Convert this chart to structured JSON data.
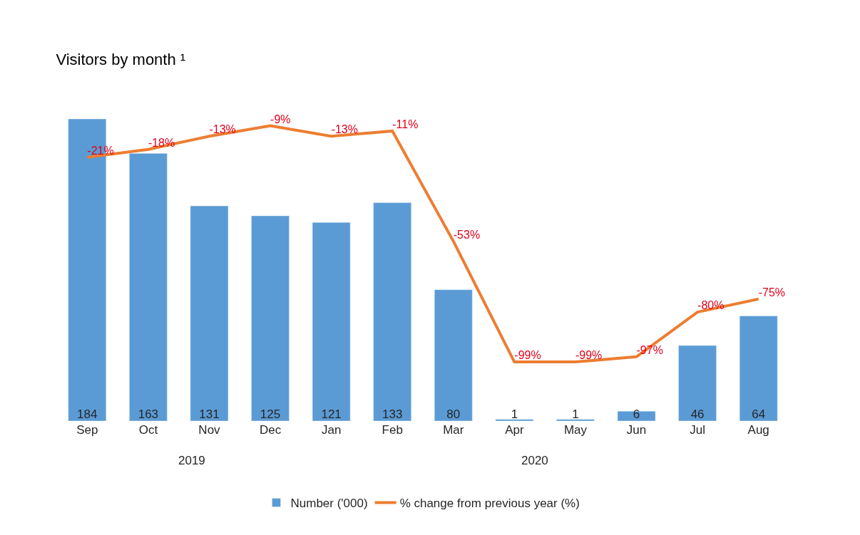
{
  "chart_data": {
    "type": "bar",
    "title": "Visitors by month ¹",
    "categories": [
      "Sep",
      "Oct",
      "Nov",
      "Dec",
      "Jan",
      "Feb",
      "Mar",
      "Apr",
      "May",
      "Jun",
      "Jul",
      "Aug"
    ],
    "annotations": [
      "2019",
      "2020"
    ],
    "series": [
      {
        "name": "Number ('000)",
        "color": "#5b9bd5",
        "values": [
          184,
          163,
          131,
          125,
          121,
          133,
          80,
          1,
          1,
          6,
          46,
          64
        ]
      },
      {
        "name": "% change from previous year (%)",
        "type": "line",
        "axis": "y2",
        "color": "#ed7d31",
        "values": [
          -21,
          -18,
          -13,
          -9,
          -13,
          -11,
          -53,
          -99,
          -99,
          -97,
          -80,
          -75
        ],
        "value_labels": [
          "-21%",
          "-18%",
          "-13%",
          "-9%",
          "-13%",
          "-11%",
          "-53%",
          "-99%",
          "-99%",
          "-97%",
          "-80%",
          "-75%"
        ]
      }
    ],
    "data_labels": true,
    "legend": "bottom",
    "marker": "none"
  }
}
